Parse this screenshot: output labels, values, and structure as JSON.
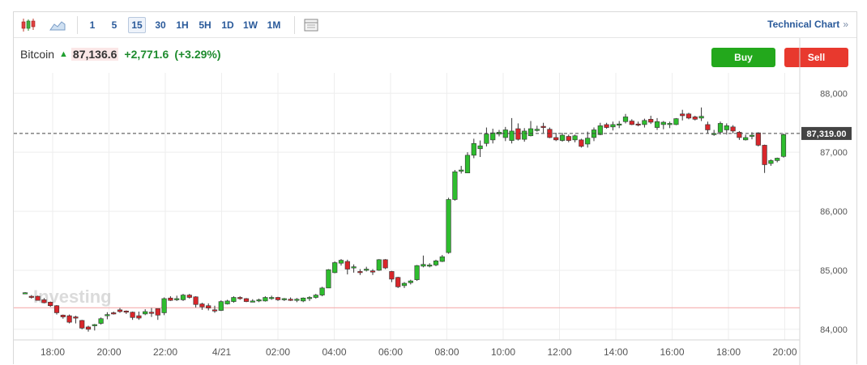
{
  "toolbar": {
    "icons": [
      "candlestick-icon",
      "area-chart-icon",
      "table-icon"
    ],
    "timeframes": [
      "1",
      "5",
      "15",
      "30",
      "1H",
      "5H",
      "1D",
      "1W",
      "1M"
    ],
    "active_timeframe": "15",
    "technical_link": "Technical Chart",
    "technical_chevron": "»"
  },
  "quote": {
    "name": "Bitcoin",
    "arrow": "▲",
    "last": "87,136.6",
    "change": "+2,771.6",
    "change_pct": "(+3.29%)"
  },
  "buttons": {
    "buy": "Buy",
    "sell": "Sell"
  },
  "colors": {
    "up": "#2ebd2e",
    "down": "#d9262b",
    "grid": "#eeeeee",
    "prev_close_line": "#f3a3a3",
    "price_tag_bg": "#444444"
  },
  "watermark": "Investing",
  "chart_data": {
    "type": "candlestick",
    "ylim": [
      83650,
      88200
    ],
    "y_ticks": [
      "84,000",
      "85,000",
      "86,000",
      "87,000",
      "88,000"
    ],
    "y_tick_values": [
      84000,
      85000,
      86000,
      87000,
      88000
    ],
    "x_ticks": [
      "18:00",
      "20:00",
      "22:00",
      "4/21",
      "02:00",
      "04:00",
      "06:00",
      "08:00",
      "10:00",
      "12:00",
      "14:00",
      "16:00",
      "18:00",
      "20:00"
    ],
    "prev_close": 84365,
    "current_price": 87319,
    "current_price_label": "87,319.00",
    "grid": true,
    "candles": [
      [
        84620,
        84630,
        84600,
        84620
      ],
      [
        84560,
        84580,
        84520,
        84540
      ],
      [
        84560,
        84570,
        84490,
        84490
      ],
      [
        84500,
        84530,
        84440,
        84450
      ],
      [
        84460,
        84470,
        84380,
        84400
      ],
      [
        84400,
        84410,
        84250,
        84280
      ],
      [
        84240,
        84250,
        84180,
        84210
      ],
      [
        84230,
        84250,
        84100,
        84120
      ],
      [
        84210,
        84230,
        84100,
        84190
      ],
      [
        84150,
        84160,
        84000,
        84020
      ],
      [
        84040,
        84060,
        83960,
        84000
      ],
      [
        84060,
        84090,
        83980,
        84080
      ],
      [
        84100,
        84200,
        84080,
        84180
      ],
      [
        84250,
        84290,
        84170,
        84250
      ],
      [
        84280,
        84300,
        84250,
        84260
      ],
      [
        84330,
        84360,
        84280,
        84300
      ],
      [
        84310,
        84320,
        84260,
        84300
      ],
      [
        84290,
        84300,
        84160,
        84200
      ],
      [
        84230,
        84300,
        84160,
        84190
      ],
      [
        84260,
        84340,
        84240,
        84300
      ],
      [
        84290,
        84360,
        84210,
        84270
      ],
      [
        84350,
        84350,
        84160,
        84240
      ],
      [
        84280,
        84540,
        84240,
        84520
      ],
      [
        84530,
        84560,
        84480,
        84490
      ],
      [
        84500,
        84570,
        84480,
        84520
      ],
      [
        84500,
        84600,
        84480,
        84580
      ],
      [
        84580,
        84600,
        84520,
        84540
      ],
      [
        84550,
        84560,
        84370,
        84420
      ],
      [
        84430,
        84450,
        84330,
        84380
      ],
      [
        84400,
        84440,
        84320,
        84360
      ],
      [
        84330,
        84400,
        84280,
        84310
      ],
      [
        84320,
        84490,
        84310,
        84470
      ],
      [
        84430,
        84500,
        84420,
        84480
      ],
      [
        84470,
        84560,
        84450,
        84540
      ],
      [
        84540,
        84560,
        84500,
        84520
      ],
      [
        84520,
        84530,
        84460,
        84470
      ],
      [
        84480,
        84510,
        84460,
        84480
      ],
      [
        84490,
        84520,
        84460,
        84500
      ],
      [
        84480,
        84560,
        84470,
        84540
      ],
      [
        84530,
        84570,
        84500,
        84540
      ],
      [
        84540,
        84550,
        84480,
        84500
      ],
      [
        84500,
        84530,
        84480,
        84520
      ],
      [
        84510,
        84540,
        84480,
        84500
      ],
      [
        84500,
        84530,
        84460,
        84510
      ],
      [
        84480,
        84540,
        84460,
        84530
      ],
      [
        84520,
        84560,
        84480,
        84540
      ],
      [
        84540,
        84600,
        84520,
        84580
      ],
      [
        84580,
        84720,
        84560,
        84700
      ],
      [
        84700,
        85020,
        84700,
        85010
      ],
      [
        84960,
        85150,
        84950,
        85130
      ],
      [
        85120,
        85190,
        85080,
        85170
      ],
      [
        85150,
        85180,
        84930,
        85020
      ],
      [
        85040,
        85100,
        84960,
        85060
      ],
      [
        84980,
        85020,
        84920,
        84970
      ],
      [
        85010,
        85060,
        84980,
        85020
      ],
      [
        84990,
        85020,
        84920,
        84980
      ],
      [
        85000,
        85190,
        84990,
        85180
      ],
      [
        85180,
        85190,
        85020,
        85040
      ],
      [
        84980,
        84990,
        84800,
        84850
      ],
      [
        84880,
        84890,
        84700,
        84720
      ],
      [
        84740,
        84800,
        84700,
        84780
      ],
      [
        84790,
        84840,
        84760,
        84820
      ],
      [
        84840,
        85090,
        84820,
        85080
      ],
      [
        85070,
        85250,
        85050,
        85100
      ],
      [
        85080,
        85120,
        85050,
        85090
      ],
      [
        85090,
        85180,
        85070,
        85160
      ],
      [
        85150,
        85260,
        85140,
        85230
      ],
      [
        85300,
        86230,
        85280,
        86200
      ],
      [
        86200,
        86700,
        86180,
        86670
      ],
      [
        86680,
        86770,
        86640,
        86700
      ],
      [
        86650,
        87000,
        86650,
        86950
      ],
      [
        86950,
        87230,
        86900,
        87150
      ],
      [
        87060,
        87200,
        86920,
        87110
      ],
      [
        87150,
        87420,
        87100,
        87310
      ],
      [
        87210,
        87400,
        87150,
        87330
      ],
      [
        87310,
        87380,
        87270,
        87340
      ],
      [
        87250,
        87430,
        87190,
        87380
      ],
      [
        87200,
        87580,
        87150,
        87360
      ],
      [
        87400,
        87490,
        87200,
        87220
      ],
      [
        87220,
        87410,
        87180,
        87360
      ],
      [
        87280,
        87530,
        87270,
        87400
      ],
      [
        87390,
        87450,
        87350,
        87390
      ],
      [
        87440,
        87500,
        87330,
        87420
      ],
      [
        87390,
        87420,
        87240,
        87250
      ],
      [
        87250,
        87330,
        87190,
        87210
      ],
      [
        87200,
        87330,
        87180,
        87290
      ],
      [
        87270,
        87300,
        87170,
        87200
      ],
      [
        87210,
        87300,
        87170,
        87280
      ],
      [
        87210,
        87230,
        87080,
        87100
      ],
      [
        87140,
        87350,
        87080,
        87240
      ],
      [
        87250,
        87420,
        87190,
        87380
      ],
      [
        87300,
        87500,
        87290,
        87450
      ],
      [
        87470,
        87500,
        87400,
        87420
      ],
      [
        87430,
        87520,
        87370,
        87470
      ],
      [
        87480,
        87530,
        87410,
        87480
      ],
      [
        87520,
        87650,
        87490,
        87600
      ],
      [
        87530,
        87560,
        87460,
        87470
      ],
      [
        87480,
        87520,
        87440,
        87470
      ],
      [
        87470,
        87570,
        87420,
        87540
      ],
      [
        87560,
        87620,
        87480,
        87510
      ],
      [
        87420,
        87580,
        87380,
        87520
      ],
      [
        87470,
        87530,
        87390,
        87510
      ],
      [
        87490,
        87520,
        87410,
        87490
      ],
      [
        87470,
        87580,
        87460,
        87570
      ],
      [
        87650,
        87720,
        87540,
        87620
      ],
      [
        87650,
        87670,
        87560,
        87580
      ],
      [
        87600,
        87620,
        87540,
        87560
      ],
      [
        87580,
        87760,
        87530,
        87610
      ],
      [
        87470,
        87520,
        87320,
        87380
      ],
      [
        87300,
        87380,
        87280,
        87320
      ],
      [
        87340,
        87520,
        87300,
        87490
      ],
      [
        87380,
        87490,
        87300,
        87450
      ],
      [
        87430,
        87460,
        87320,
        87360
      ],
      [
        87340,
        87360,
        87210,
        87250
      ],
      [
        87210,
        87300,
        87200,
        87250
      ],
      [
        87270,
        87340,
        87220,
        87290
      ],
      [
        87330,
        87340,
        87100,
        87120
      ],
      [
        87120,
        87130,
        86650,
        86790
      ],
      [
        86810,
        86880,
        86770,
        86860
      ],
      [
        86860,
        86910,
        86830,
        86900
      ],
      [
        86930,
        87320,
        86910,
        87300
      ]
    ]
  }
}
